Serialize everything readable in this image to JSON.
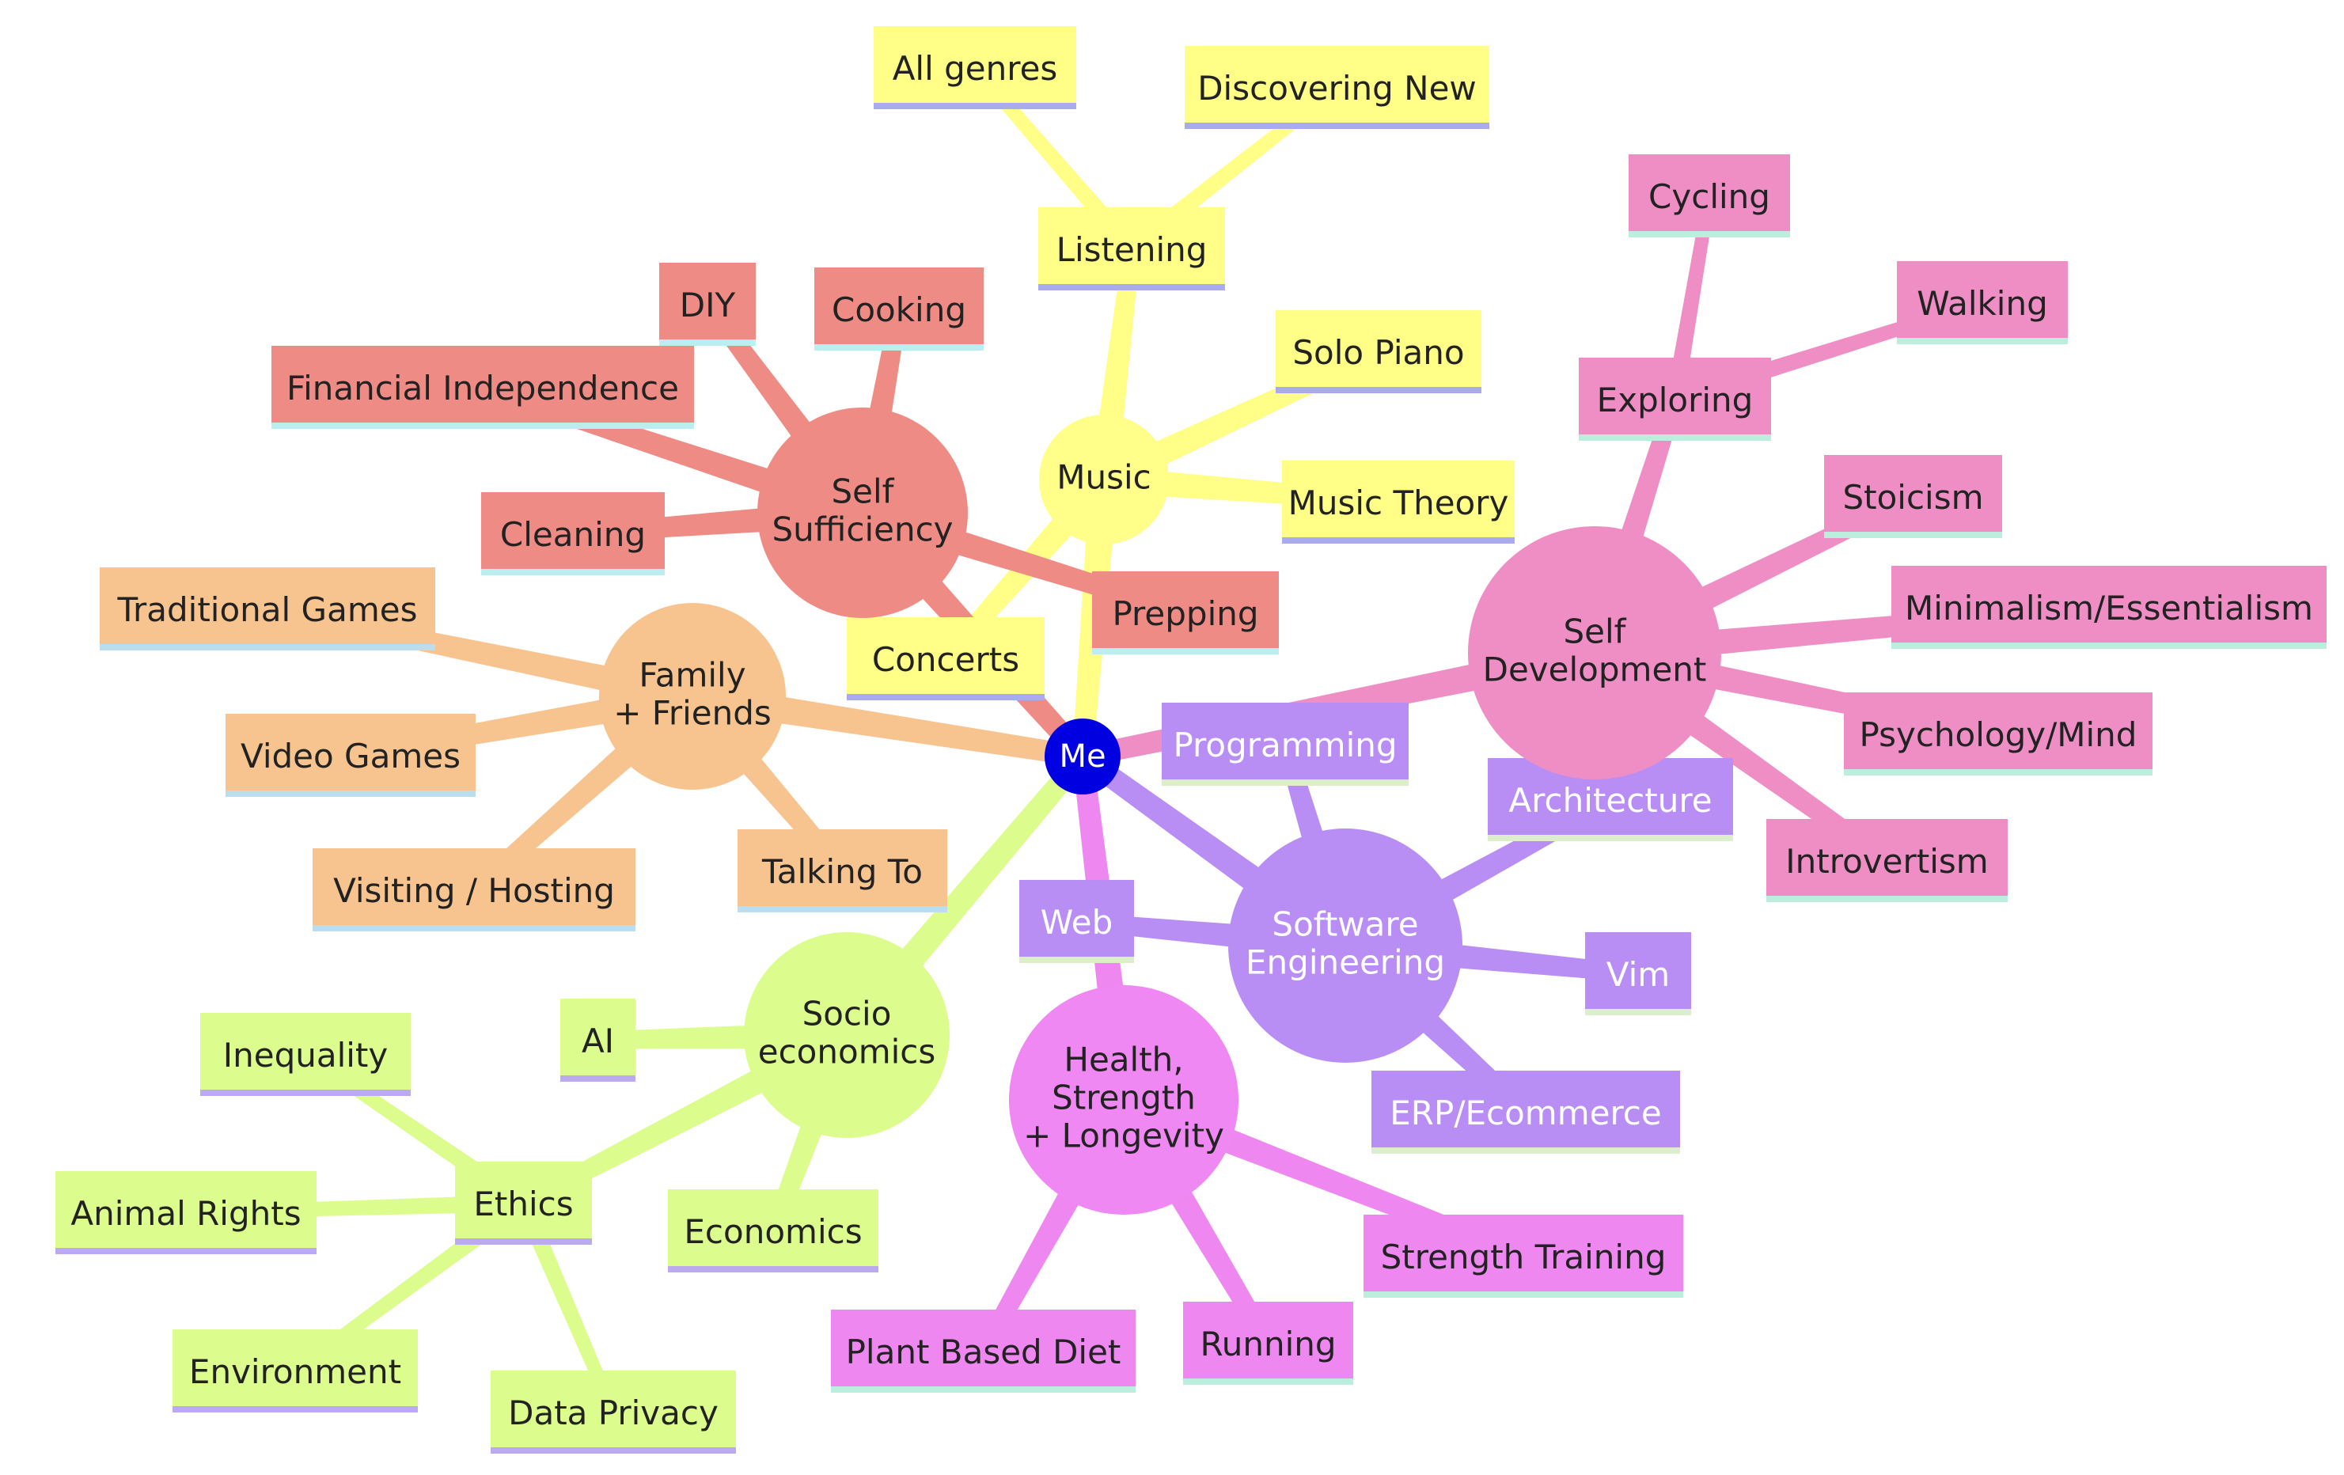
{
  "root": {
    "label": "Me",
    "color": "#0000e0",
    "text_color": "#ffffff"
  },
  "branches": [
    {
      "key": "music",
      "label": "Music",
      "color": "#ffff88",
      "node_color": "#ffff8a",
      "text_color": "#222222",
      "leaves": [
        {
          "label": "Listening",
          "children": [
            "All genres",
            "Discovering New"
          ]
        },
        {
          "label": "Solo Piano"
        },
        {
          "label": "Music Theory"
        },
        {
          "label": "Concerts"
        }
      ]
    },
    {
      "key": "self-sufficiency",
      "label": "Self Sufficiency",
      "color": "#ee8b84",
      "node_color": "#ee8b84",
      "text_color": "#222222",
      "leaves": [
        {
          "label": "DIY"
        },
        {
          "label": "Cooking"
        },
        {
          "label": "Financial Independence"
        },
        {
          "label": "Cleaning"
        },
        {
          "label": "Prepping"
        }
      ]
    },
    {
      "key": "family-friends",
      "label": "Family + Friends",
      "color": "#f7c48f",
      "node_color": "#f7c48f",
      "text_color": "#222222",
      "leaves": [
        {
          "label": "Traditional Games"
        },
        {
          "label": "Video Games"
        },
        {
          "label": "Visiting / Hosting"
        },
        {
          "label": "Talking To"
        }
      ]
    },
    {
      "key": "socio-economics",
      "label": "Socio economics",
      "color": "#dcfd8e",
      "node_color": "#dcfd8e",
      "text_color": "#222222",
      "leaves": [
        {
          "label": "AI"
        },
        {
          "label": "Economics"
        },
        {
          "label": "Ethics",
          "children": [
            "Inequality",
            "Animal Rights",
            "Environment",
            "Data Privacy"
          ]
        }
      ]
    },
    {
      "key": "health",
      "label": "Health, Strength + Longevity",
      "color": "#ee88f0",
      "node_color": "#ef88f2",
      "text_color": "#222222",
      "leaves": [
        {
          "label": "Plant Based Diet"
        },
        {
          "label": "Running"
        },
        {
          "label": "Strength Training"
        }
      ]
    },
    {
      "key": "software-engineering",
      "label": "Software Engineering",
      "color": "#b88ef5",
      "node_color": "#b88ef5",
      "text_color": "#ffffff",
      "leaves": [
        {
          "label": "Programming"
        },
        {
          "label": "Architecture"
        },
        {
          "label": "Web"
        },
        {
          "label": "Vim"
        },
        {
          "label": "ERP/Ecommerce"
        }
      ]
    },
    {
      "key": "self-development",
      "label": "Self Development",
      "color": "#ee8ec4",
      "node_color": "#ee8ec4",
      "text_color": "#222222",
      "leaves": [
        {
          "label": "Exploring",
          "children": [
            "Cycling",
            "Walking"
          ]
        },
        {
          "label": "Stoicism"
        },
        {
          "label": "Minimalism/Essentialism"
        },
        {
          "label": "Psychology/Mind"
        },
        {
          "label": "Introvertism"
        }
      ]
    }
  ],
  "leaf_underlines": {
    "music": "#aaaaee",
    "self-sufficiency": "#bbeeee",
    "family-friends": "#bbddee",
    "socio-economics": "#bbaaee",
    "health": "#bbeedd",
    "software-engineering": "#ddeecc",
    "self-development": "#bbeedd"
  }
}
